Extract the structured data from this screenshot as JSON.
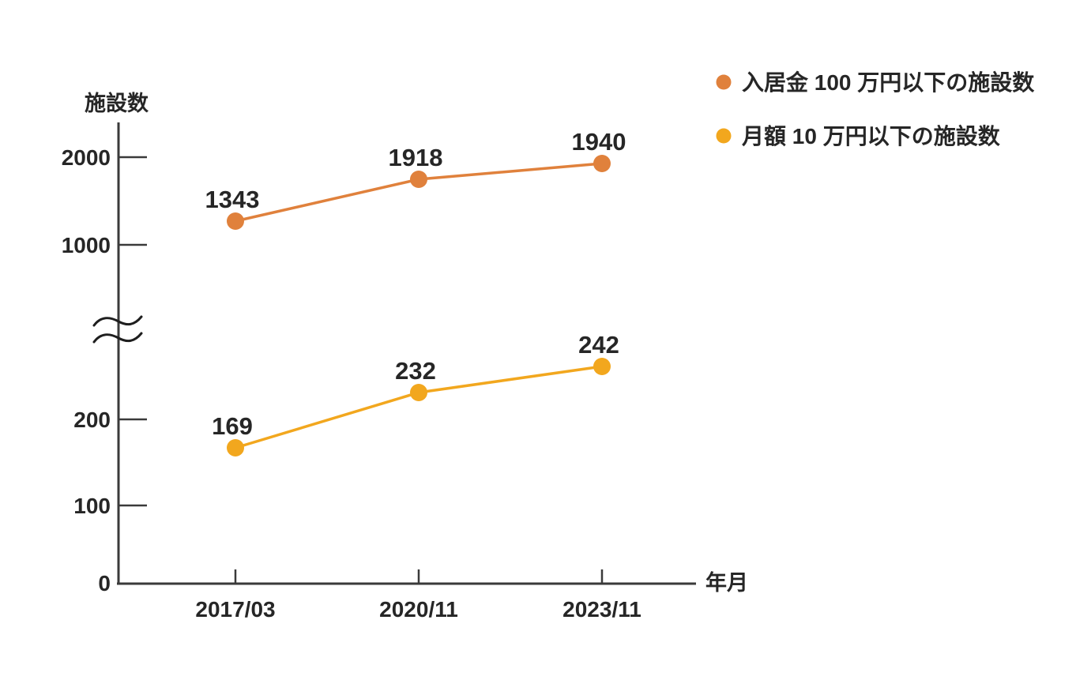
{
  "chart_data": {
    "type": "line",
    "title": "",
    "ylabel": "施設数",
    "xlabel": "年月",
    "categories": [
      "2017/03",
      "2020/11",
      "2023/11"
    ],
    "series": [
      {
        "name": "入居金 100 万円以下の施設数",
        "values": [
          1343,
          1918,
          1940
        ],
        "color": "#E0813C"
      },
      {
        "name": "月額 10 万円以下の施設数",
        "values": [
          169,
          232,
          242
        ],
        "color": "#F2A71E"
      }
    ],
    "y_tick_labels": [
      "2000",
      "1000",
      "200",
      "100",
      "0"
    ],
    "y_ticks_upper": [
      1000,
      2000
    ],
    "y_ticks_lower": [
      0,
      100,
      200
    ],
    "axis_break": true,
    "grid": false,
    "legend_position": "top-right",
    "colors": {
      "background": "#FFFFFF",
      "text": "#262626",
      "axis": "#3A3A3A"
    }
  }
}
